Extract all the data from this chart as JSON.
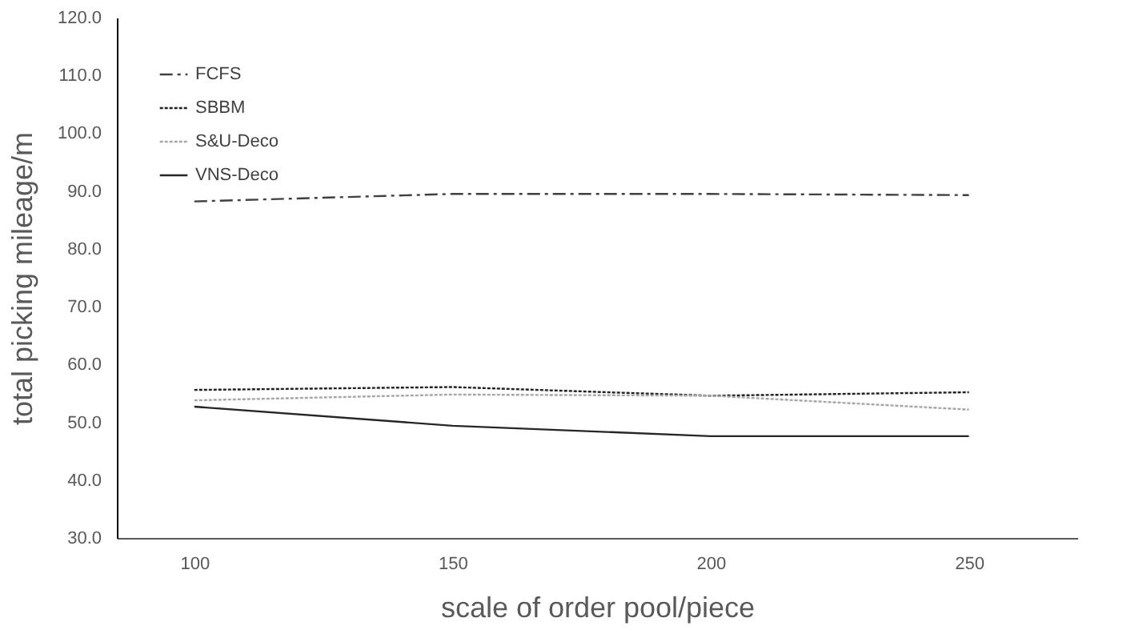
{
  "chart_data": {
    "type": "line",
    "xlabel": "scale of order pool/piece",
    "ylabel": "total picking mileage/m",
    "x": [
      100,
      150,
      200,
      250
    ],
    "series": [
      {
        "name": "FCFS",
        "color": "#404040",
        "line_style": "dashed",
        "values": [
          88.2,
          89.5,
          89.5,
          89.3
        ]
      },
      {
        "name": "SBBM",
        "color": "#202020",
        "line_style": "dotted",
        "values": [
          55.6,
          56.1,
          54.6,
          55.2
        ]
      },
      {
        "name": "S&U-Deco",
        "color": "#a6a6a6",
        "line_style": "dotted",
        "values": [
          53.8,
          54.8,
          54.6,
          52.2
        ]
      },
      {
        "name": "VNS-Deco",
        "color": "#262626",
        "line_style": "solid",
        "values": [
          52.7,
          49.4,
          47.6,
          47.6
        ]
      }
    ],
    "xlim": [
      85,
      271
    ],
    "xticks": [
      100,
      150,
      200,
      250
    ],
    "ylim": [
      30,
      120
    ],
    "yticks": [
      {
        "value": 30,
        "label": "30.0"
      },
      {
        "value": 40,
        "label": "40.0"
      },
      {
        "value": 50,
        "label": "50.0"
      },
      {
        "value": 60,
        "label": "60.0"
      },
      {
        "value": 70,
        "label": "70.0"
      },
      {
        "value": 80,
        "label": "80.0"
      },
      {
        "value": 90,
        "label": "90.0"
      },
      {
        "value": 100,
        "label": "100.0"
      },
      {
        "value": 110,
        "label": "110.0"
      },
      {
        "value": 120,
        "label": "120.0"
      }
    ],
    "grid": false,
    "legend": "top left",
    "marker": "none"
  }
}
